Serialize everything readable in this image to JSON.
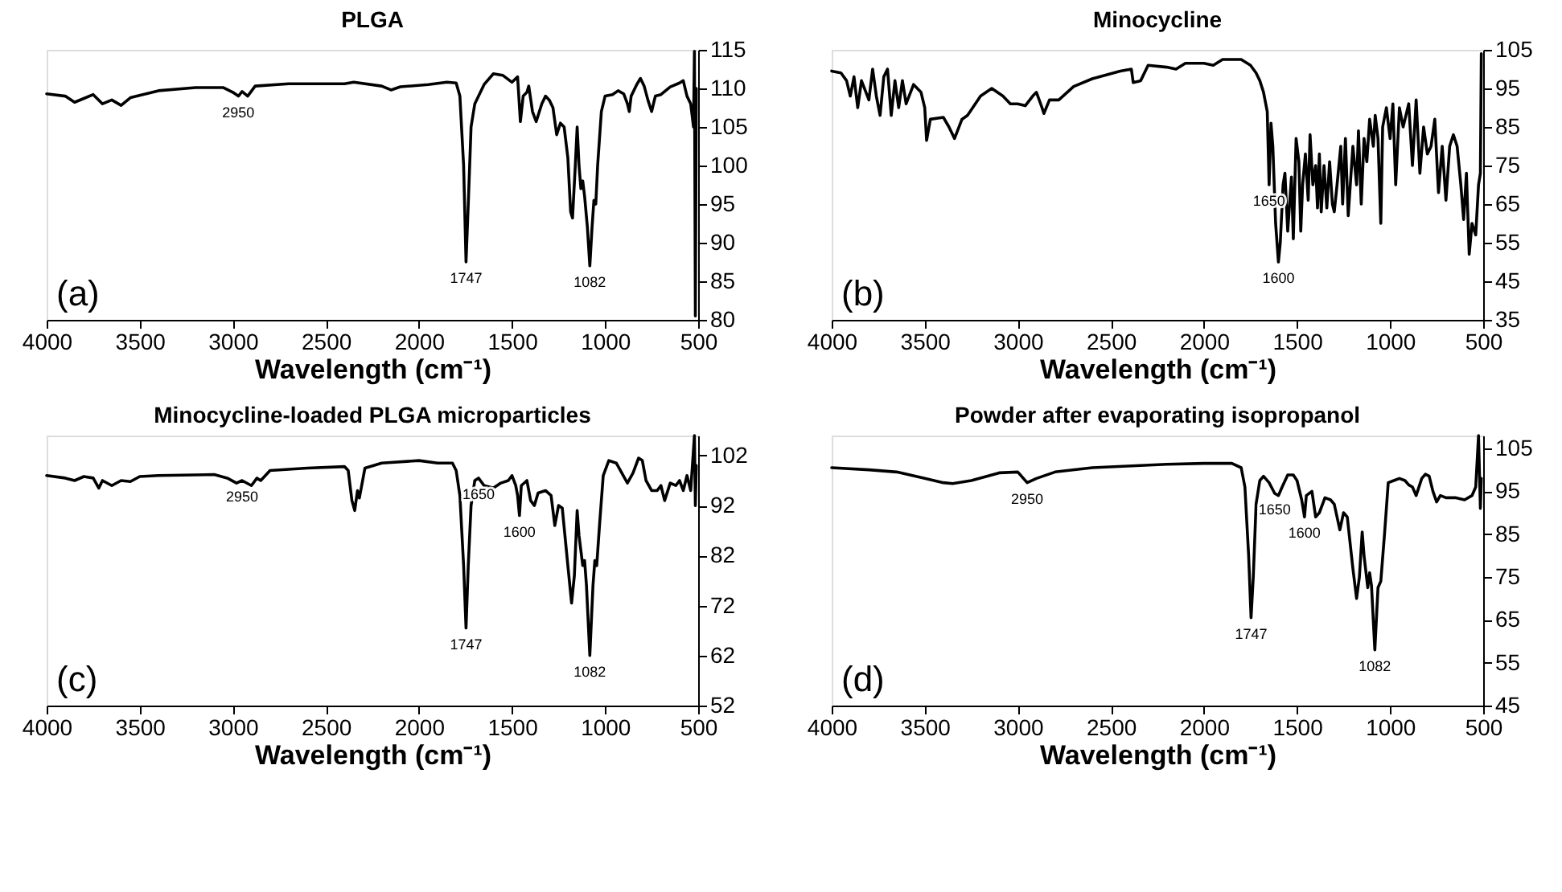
{
  "chart_data": [
    {
      "type": "line",
      "title": "PLGA",
      "xlabel": "Wavelength (cm⁻¹)",
      "xlim": [
        4000,
        500
      ],
      "xticks": [
        4000,
        3500,
        3000,
        2500,
        2000,
        1500,
        1000,
        500
      ],
      "ylim": [
        80,
        115
      ],
      "yticks": [
        80,
        85,
        90,
        95,
        100,
        105,
        110,
        115
      ],
      "grid": false,
      "marker": "none",
      "line_style": "solid",
      "x": [
        4000,
        3900,
        3850,
        3800,
        3750,
        3700,
        3650,
        3600,
        3550,
        3400,
        3200,
        3050,
        3000,
        2970,
        2950,
        2920,
        2880,
        2700,
        2400,
        2350,
        2200,
        2150,
        2100,
        1950,
        1850,
        1800,
        1780,
        1760,
        1747,
        1735,
        1720,
        1700,
        1650,
        1600,
        1550,
        1500,
        1470,
        1455,
        1440,
        1420,
        1410,
        1390,
        1370,
        1340,
        1320,
        1300,
        1280,
        1260,
        1240,
        1220,
        1200,
        1185,
        1175,
        1160,
        1150,
        1140,
        1130,
        1120,
        1110,
        1095,
        1082,
        1070,
        1060,
        1050,
        1040,
        1020,
        1000,
        960,
        930,
        900,
        880,
        870,
        860,
        830,
        810,
        790,
        770,
        750,
        730,
        700,
        650,
        600,
        580,
        560,
        540,
        525,
        520,
        515,
        510
      ],
      "series": [
        {
          "color": "#000000",
          "values": [
            109.3,
            109,
            108.2,
            108.7,
            109.2,
            108,
            108.5,
            107.8,
            108.8,
            109.7,
            110.1,
            110.1,
            109.5,
            109,
            109.6,
            109,
            110.3,
            110.6,
            110.6,
            110.8,
            110.3,
            109.8,
            110.2,
            110.5,
            110.8,
            110.7,
            109,
            100,
            87.5,
            95,
            105,
            108,
            110.5,
            111.9,
            111.7,
            110.8,
            111.5,
            105.7,
            109,
            109.5,
            110.3,
            107,
            105.7,
            108,
            109,
            108.5,
            107.5,
            104,
            105.5,
            105,
            101,
            94,
            93.2,
            100,
            105,
            100,
            97,
            98,
            96,
            92,
            87,
            92,
            95.5,
            95,
            100,
            107,
            109,
            109.2,
            109.7,
            109.3,
            108,
            107,
            109,
            110.5,
            111.3,
            110.3,
            108.5,
            107,
            109,
            109.2,
            110.2,
            110.7,
            111,
            109,
            108,
            105,
            114.8,
            80.5,
            110
          ]
        }
      ],
      "annotations": [
        "(a)",
        {
          "text": "2950",
          "x": 2970,
          "y": 109
        },
        {
          "text": "1747",
          "x": 1747,
          "y": 87.5
        },
        {
          "text": "1082",
          "x": 1082,
          "y": 87
        }
      ]
    },
    {
      "type": "line",
      "title": "Minocycline",
      "xlabel": "Wavelength (cm⁻¹)",
      "xlim": [
        4000,
        500
      ],
      "xticks": [
        4000,
        3500,
        3000,
        2500,
        2000,
        1500,
        1000,
        500
      ],
      "ylim": [
        35,
        105
      ],
      "yticks": [
        35,
        45,
        55,
        65,
        75,
        85,
        95,
        105
      ],
      "grid": false,
      "marker": "none",
      "line_style": "solid",
      "x": [
        4000,
        3950,
        3920,
        3900,
        3880,
        3860,
        3840,
        3800,
        3780,
        3760,
        3740,
        3720,
        3700,
        3680,
        3660,
        3640,
        3620,
        3600,
        3560,
        3520,
        3500,
        3490,
        3470,
        3400,
        3370,
        3340,
        3300,
        3270,
        3200,
        3140,
        3080,
        3040,
        3000,
        2960,
        2920,
        2900,
        2870,
        2860,
        2830,
        2780,
        2700,
        2600,
        2450,
        2390,
        2380,
        2340,
        2300,
        2200,
        2150,
        2100,
        2000,
        1950,
        1900,
        1800,
        1750,
        1720,
        1700,
        1680,
        1660,
        1650,
        1640,
        1630,
        1615,
        1600,
        1590,
        1575,
        1565,
        1550,
        1540,
        1530,
        1520,
        1505,
        1490,
        1480,
        1470,
        1455,
        1440,
        1430,
        1415,
        1400,
        1390,
        1380,
        1370,
        1355,
        1340,
        1325,
        1310,
        1300,
        1285,
        1265,
        1255,
        1240,
        1225,
        1200,
        1180,
        1170,
        1155,
        1140,
        1125,
        1110,
        1090,
        1080,
        1065,
        1050,
        1040,
        1020,
        1000,
        985,
        970,
        950,
        930,
        900,
        880,
        860,
        840,
        820,
        800,
        780,
        760,
        740,
        720,
        700,
        680,
        660,
        640,
        620,
        605,
        590,
        575,
        560,
        540,
        525,
        515,
        510
      ],
      "series": [
        {
          "color": "#000000",
          "values": [
            99.5,
            99,
            97,
            93,
            98,
            90,
            97,
            92,
            100,
            93,
            88,
            98,
            100,
            88,
            97,
            90,
            97,
            91,
            96,
            94,
            90,
            81.5,
            87,
            87.5,
            85,
            82,
            87,
            88,
            93,
            95,
            93,
            91,
            91,
            90.5,
            93,
            94,
            90,
            88.5,
            92,
            92,
            95.5,
            97.5,
            99.5,
            100,
            96.5,
            97,
            101,
            100.5,
            100,
            101.5,
            101.5,
            101,
            102.5,
            102.5,
            101,
            99,
            97,
            94,
            89,
            70,
            86,
            80,
            60,
            50,
            55,
            70,
            73,
            58,
            65,
            72,
            56,
            82,
            76,
            58,
            70,
            78,
            66,
            83,
            70,
            75,
            64,
            78,
            63,
            75,
            64,
            76,
            65,
            63,
            70,
            80,
            65,
            82,
            62,
            80,
            70,
            84,
            65,
            82,
            76,
            87,
            80,
            88,
            82,
            60,
            85,
            90,
            82,
            91,
            70,
            90,
            85,
            91,
            75,
            92,
            73,
            85,
            78,
            80,
            87,
            68,
            80,
            66,
            80,
            83,
            80,
            70,
            61,
            73,
            52,
            60,
            57,
            70,
            73,
            104
          ]
        }
      ],
      "annotations": [
        "(b)",
        {
          "text": "1650",
          "x": 1650,
          "y": 70
        },
        {
          "text": "1600",
          "x": 1600,
          "y": 50
        }
      ]
    },
    {
      "type": "line",
      "title": "Minocycline-loaded PLGA microparticles",
      "xlabel": "Wavelength (cm⁻¹)",
      "xlim": [
        4000,
        500
      ],
      "xticks": [
        4000,
        3500,
        3000,
        2500,
        2000,
        1500,
        1000,
        500
      ],
      "ylim": [
        52,
        106
      ],
      "yticks": [
        52,
        62,
        72,
        82,
        92,
        102
      ],
      "grid": false,
      "marker": "none",
      "line_style": "solid",
      "x": [
        4000,
        3900,
        3850,
        3800,
        3750,
        3720,
        3700,
        3650,
        3600,
        3550,
        3500,
        3400,
        3100,
        3030,
        2980,
        2950,
        2900,
        2870,
        2850,
        2800,
        2600,
        2400,
        2380,
        2360,
        2345,
        2330,
        2320,
        2290,
        2200,
        2000,
        1900,
        1820,
        1800,
        1780,
        1760,
        1747,
        1735,
        1720,
        1700,
        1680,
        1650,
        1600,
        1560,
        1520,
        1500,
        1480,
        1470,
        1460,
        1450,
        1420,
        1400,
        1380,
        1360,
        1320,
        1290,
        1270,
        1250,
        1230,
        1200,
        1180,
        1165,
        1150,
        1140,
        1120,
        1110,
        1100,
        1082,
        1065,
        1055,
        1045,
        1030,
        1010,
        980,
        940,
        910,
        880,
        850,
        820,
        800,
        780,
        750,
        720,
        700,
        680,
        650,
        620,
        600,
        580,
        560,
        540,
        520,
        515,
        510
      ],
      "series": [
        {
          "color": "#000000",
          "values": [
            98,
            97.5,
            97,
            97.8,
            97.5,
            95.5,
            97,
            96,
            97,
            96.8,
            97.8,
            98,
            98.2,
            97.5,
            96.5,
            97,
            96,
            97.5,
            97,
            99,
            99.5,
            99.8,
            99,
            93,
            91,
            95,
            93.5,
            99.5,
            100.5,
            101,
            100.5,
            100.5,
            99,
            94,
            80,
            67.5,
            80,
            92,
            97,
            97.5,
            96,
            95.5,
            96.5,
            97,
            98,
            96,
            94,
            90,
            96,
            97,
            93,
            92,
            94.5,
            95,
            94,
            88,
            92,
            91.5,
            80,
            72.5,
            78,
            91,
            86,
            80,
            81,
            76,
            62,
            76,
            81,
            80,
            88,
            98,
            101,
            100.5,
            98.5,
            96.5,
            98.5,
            101.5,
            101,
            97,
            95,
            95,
            96,
            93,
            96.5,
            96,
            97,
            95,
            98,
            95,
            106,
            92,
            100
          ]
        }
      ],
      "annotations": [
        "(c)",
        {
          "text": "2950",
          "x": 2950,
          "y": 97
        },
        {
          "text": "1650",
          "x": 1680,
          "y": 97.5
        },
        {
          "text": "1600",
          "x": 1460,
          "y": 90
        },
        {
          "text": "1747",
          "x": 1747,
          "y": 67.5
        },
        {
          "text": "1082",
          "x": 1082,
          "y": 62
        }
      ]
    },
    {
      "type": "line",
      "title": "Powder after evaporating isopropanol",
      "xlabel": "Wavelength (cm⁻¹)",
      "xlim": [
        4000,
        500
      ],
      "xticks": [
        4000,
        3500,
        3000,
        2500,
        2000,
        1500,
        1000,
        500
      ],
      "ylim": [
        45,
        108
      ],
      "yticks": [
        45,
        55,
        65,
        75,
        85,
        95,
        105
      ],
      "grid": false,
      "marker": "none",
      "line_style": "solid",
      "x": [
        4000,
        3800,
        3650,
        3500,
        3400,
        3350,
        3250,
        3100,
        3000,
        2980,
        2950,
        2900,
        2800,
        2600,
        2200,
        2000,
        1850,
        1800,
        1780,
        1760,
        1747,
        1735,
        1720,
        1700,
        1680,
        1650,
        1620,
        1600,
        1580,
        1550,
        1520,
        1500,
        1475,
        1460,
        1450,
        1420,
        1400,
        1380,
        1350,
        1320,
        1300,
        1270,
        1250,
        1230,
        1200,
        1180,
        1165,
        1150,
        1140,
        1120,
        1110,
        1100,
        1082,
        1065,
        1050,
        1030,
        1010,
        980,
        950,
        920,
        900,
        880,
        860,
        830,
        810,
        790,
        770,
        750,
        730,
        700,
        650,
        600,
        560,
        540,
        525,
        515,
        510
      ],
      "series": [
        {
          "color": "#000000",
          "values": [
            100.5,
            100,
            99.5,
            98,
            97,
            96.8,
            97.5,
            99.3,
            99.5,
            98.5,
            97,
            98,
            99.5,
            100.5,
            101.3,
            101.5,
            101.5,
            100.5,
            96,
            80,
            65.5,
            75,
            92,
            97.5,
            98.5,
            97,
            94.5,
            94,
            96,
            98.8,
            98.8,
            97.5,
            93,
            89,
            94,
            95,
            89,
            90,
            93.5,
            93,
            92,
            86,
            90,
            89,
            77,
            70,
            75,
            85.5,
            80,
            72.5,
            76,
            73,
            58,
            72.5,
            74,
            85,
            97,
            97.5,
            98,
            97.5,
            96.5,
            96,
            94,
            98,
            99,
            98.5,
            95,
            92.5,
            94,
            93.5,
            93.5,
            93,
            94,
            96,
            108,
            91,
            98
          ]
        }
      ],
      "annotations": [
        "(d)",
        {
          "text": "2950",
          "x": 2950,
          "y": 97
        },
        {
          "text": "1650",
          "x": 1620,
          "y": 94.5
        },
        {
          "text": "1600",
          "x": 1460,
          "y": 89
        },
        {
          "text": "1747",
          "x": 1747,
          "y": 65.5
        },
        {
          "text": "1082",
          "x": 1082,
          "y": 58
        }
      ]
    }
  ]
}
